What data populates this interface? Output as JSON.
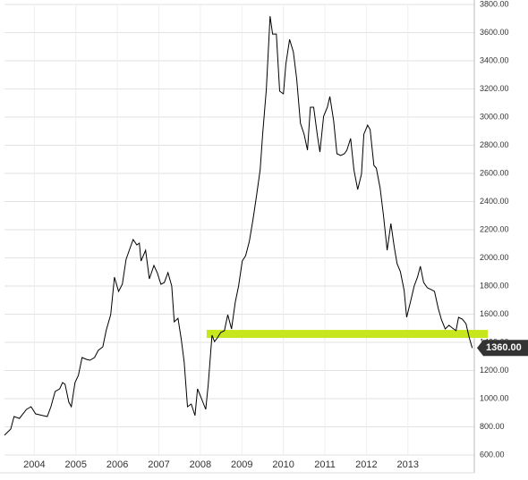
{
  "chart_data": {
    "type": "line",
    "color": "#000000",
    "x": [
      2003.28,
      2003.43,
      2003.51,
      2003.64,
      2003.81,
      2003.92,
      2004.03,
      2004.2,
      2004.31,
      2004.4,
      2004.5,
      2004.61,
      2004.68,
      2004.74,
      2004.83,
      2004.89,
      2004.98,
      2005.06,
      2005.15,
      2005.26,
      2005.34,
      2005.45,
      2005.54,
      2005.65,
      2005.73,
      2005.84,
      2005.93,
      2006.03,
      2006.12,
      2006.21,
      2006.31,
      2006.38,
      2006.47,
      2006.53,
      2006.57,
      2006.68,
      2006.77,
      2006.88,
      2006.96,
      2007.05,
      2007.13,
      2007.22,
      2007.31,
      2007.37,
      2007.46,
      2007.54,
      2007.61,
      2007.69,
      2007.78,
      2007.87,
      2007.93,
      2008.02,
      2008.13,
      2008.19,
      2008.28,
      2008.34,
      2008.41,
      2008.49,
      2008.58,
      2008.66,
      2008.75,
      2008.84,
      2008.92,
      2009.01,
      2009.09,
      2009.18,
      2009.27,
      2009.35,
      2009.44,
      2009.5,
      2009.59,
      2009.68,
      2009.74,
      2009.83,
      2009.91,
      2010.0,
      2010.06,
      2010.15,
      2010.24,
      2010.32,
      2010.41,
      2010.5,
      2010.58,
      2010.65,
      2010.73,
      2010.82,
      2010.88,
      2010.97,
      2011.06,
      2011.12,
      2011.21,
      2011.29,
      2011.38,
      2011.47,
      2011.53,
      2011.62,
      2011.7,
      2011.79,
      2011.88,
      2011.94,
      2012.03,
      2012.09,
      2012.18,
      2012.24,
      2012.33,
      2012.41,
      2012.5,
      2012.59,
      2012.67,
      2012.74,
      2012.82,
      2012.91,
      2012.97,
      2013.06,
      2013.15,
      2013.23,
      2013.3,
      2013.38,
      2013.47,
      2013.56,
      2013.64,
      2013.73,
      2013.81,
      2013.9,
      2013.99,
      2014.07,
      2014.16,
      2014.22,
      2014.31,
      2014.4,
      2014.48,
      2014.55
    ],
    "values": [
      740,
      784,
      873,
      860,
      924,
      943,
      892,
      880,
      873,
      943,
      1051,
      1070,
      1114,
      1102,
      975,
      943,
      1114,
      1165,
      1292,
      1279,
      1273,
      1292,
      1343,
      1368,
      1483,
      1597,
      1863,
      1762,
      1813,
      1990,
      2073,
      2130,
      2092,
      2105,
      1978,
      2054,
      1851,
      1946,
      1895,
      1813,
      1825,
      1895,
      1800,
      1546,
      1571,
      1419,
      1260,
      943,
      962,
      880,
      1070,
      1006,
      924,
      1102,
      1451,
      1406,
      1432,
      1470,
      1483,
      1597,
      1495,
      1686,
      1800,
      1978,
      2016,
      2117,
      2276,
      2435,
      2625,
      2879,
      3197,
      3717,
      3590,
      3590,
      3184,
      3165,
      3375,
      3552,
      3463,
      3273,
      2956,
      2879,
      2765,
      3070,
      3070,
      2867,
      2752,
      3006,
      3070,
      3146,
      2975,
      2740,
      2727,
      2740,
      2765,
      2848,
      2625,
      2486,
      2594,
      2879,
      2943,
      2911,
      2657,
      2638,
      2498,
      2308,
      2054,
      2244,
      2079,
      1959,
      1902,
      1768,
      1578,
      1686,
      1800,
      1863,
      1940,
      1825,
      1787,
      1775,
      1762,
      1641,
      1559,
      1495,
      1521,
      1502,
      1483,
      1578,
      1565,
      1533,
      1432,
      1360
    ],
    "xlim": [
      2003.28,
      2014.6
    ],
    "xticks": [
      2004,
      2005,
      2006,
      2007,
      2008,
      2009,
      2010,
      2011,
      2012,
      2013
    ],
    "ylim": [
      600,
      3800
    ],
    "yticks": [
      {
        "value": 600,
        "label": "600.00"
      },
      {
        "value": 800,
        "label": "800.00"
      },
      {
        "value": 1000,
        "label": "1000.00"
      },
      {
        "value": 1200,
        "label": "1200.00"
      },
      {
        "value": 1400,
        "label": "1400.00"
      },
      {
        "value": 1600,
        "label": "1600.00"
      },
      {
        "value": 1800,
        "label": "1800.00"
      },
      {
        "value": 2000,
        "label": "2000.00"
      },
      {
        "value": 2200,
        "label": "2200.00"
      },
      {
        "value": 2400,
        "label": "2400.00"
      },
      {
        "value": 2600,
        "label": "2600.00"
      },
      {
        "value": 2800,
        "label": "2800.00"
      },
      {
        "value": 3000,
        "label": "3000.00"
      },
      {
        "value": 3200,
        "label": "3200.00"
      },
      {
        "value": 3400,
        "label": "3400.00"
      },
      {
        "value": 3600,
        "label": "3600.00"
      },
      {
        "value": 3800,
        "label": "3800.00"
      }
    ],
    "grid": true,
    "highlight": {
      "value": 1460,
      "x_from": 2008.15,
      "color": "#c8e61e"
    },
    "last_value": {
      "value": 1360,
      "label": "1360.00"
    }
  }
}
